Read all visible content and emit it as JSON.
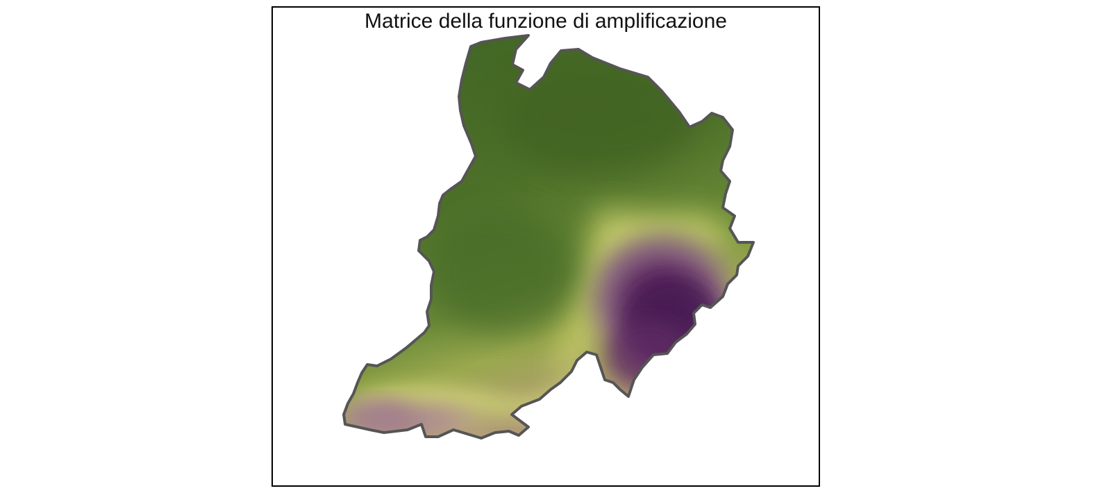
{
  "figure": {
    "title": "Matrice della funzione di amplificazione"
  },
  "map": {
    "colors": {
      "low": "#4a6d2a",
      "mid_green": "#5f8236",
      "transition": "#d3d87a",
      "high": "#a77f92",
      "max": "#4a1a55",
      "boundary": "#555555"
    }
  }
}
